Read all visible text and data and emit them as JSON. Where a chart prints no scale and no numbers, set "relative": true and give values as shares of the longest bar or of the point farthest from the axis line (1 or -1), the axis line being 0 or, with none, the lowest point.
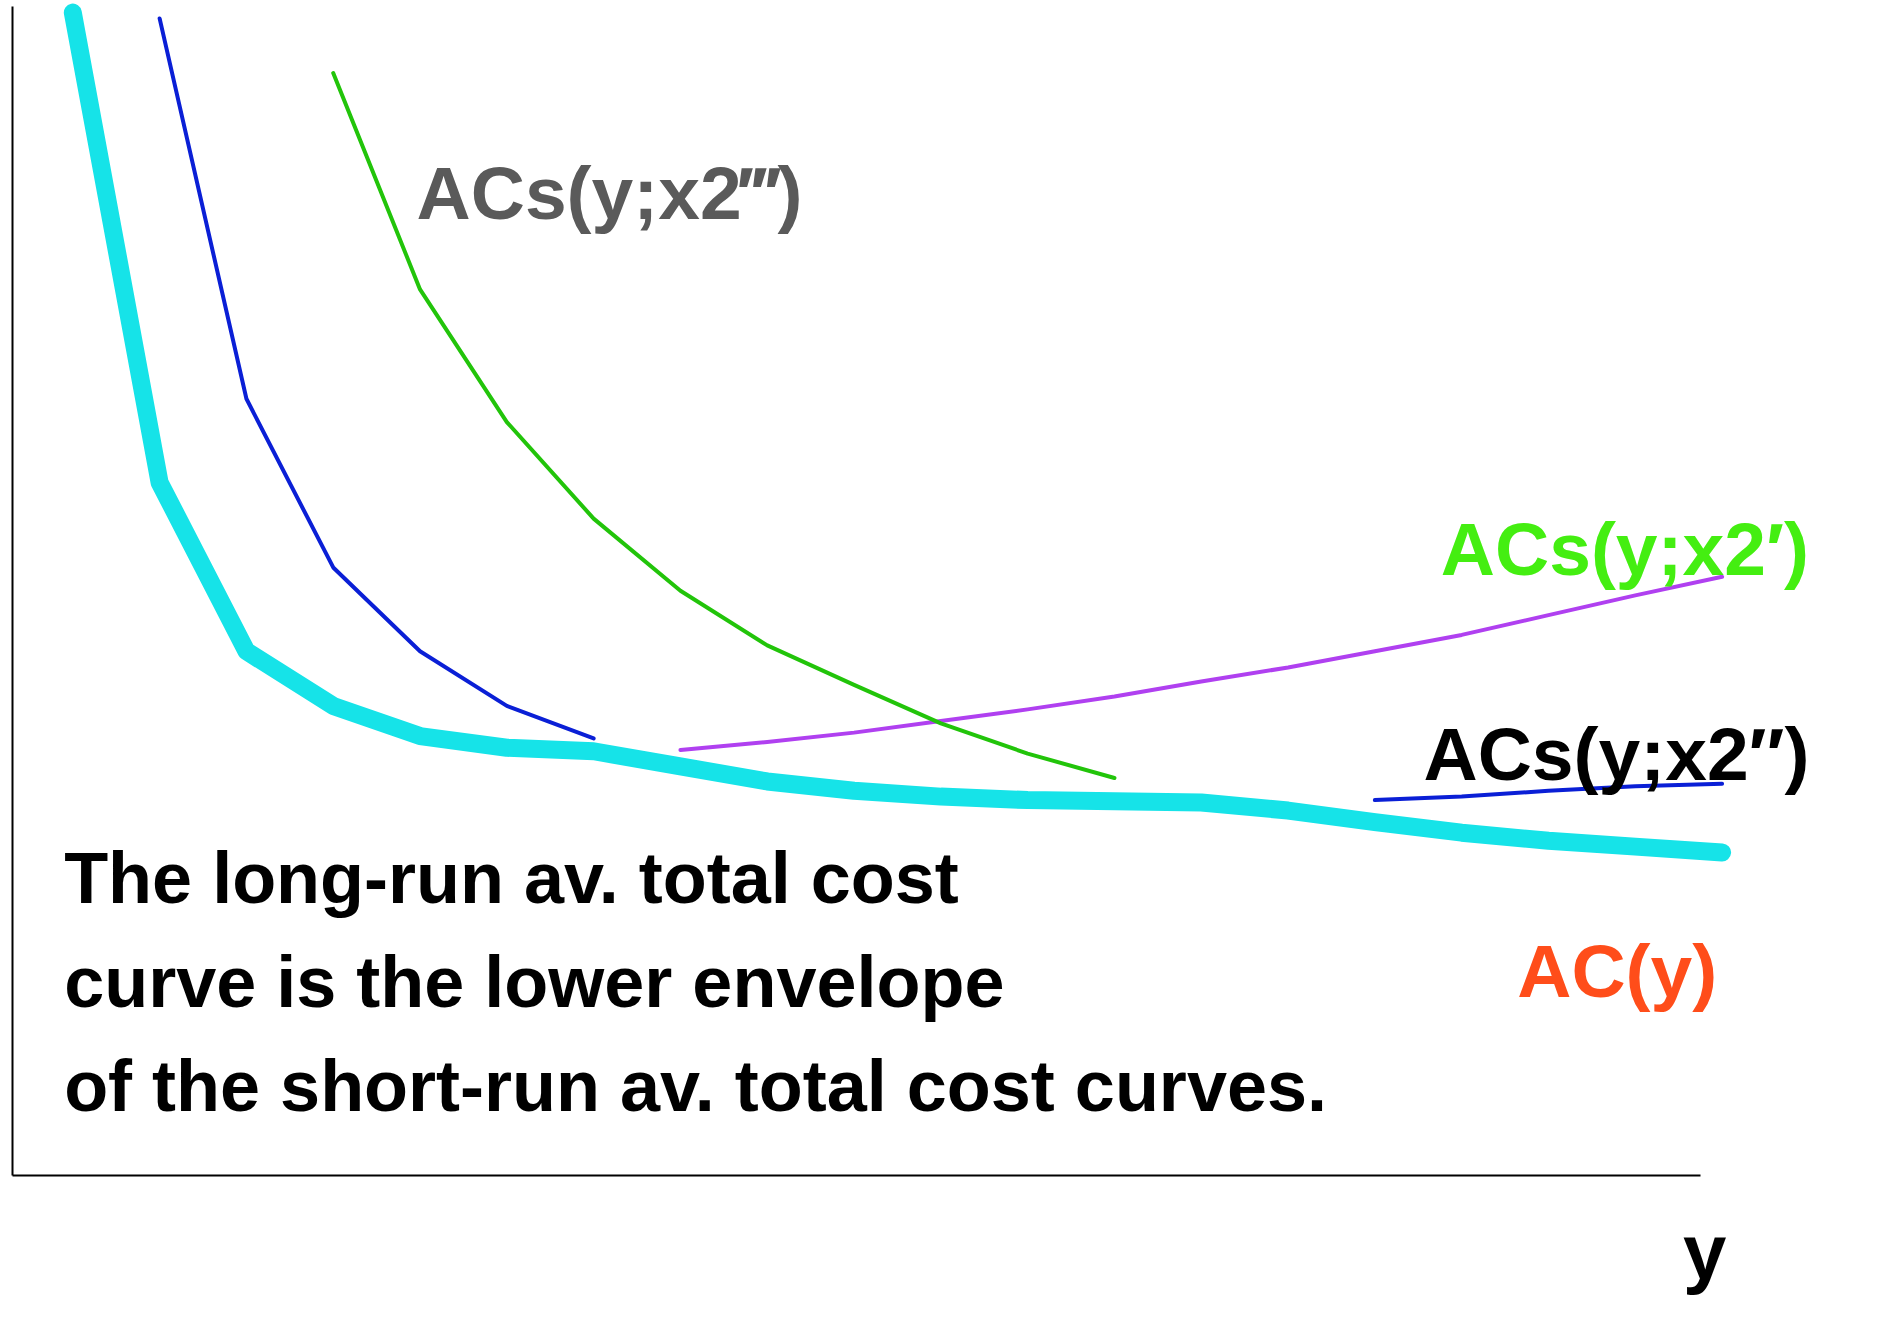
{
  "chart_data": {
    "type": "line",
    "relative": true,
    "xlabel": "y",
    "grid": false,
    "tick_labels": false,
    "categories": [
      null,
      null,
      null,
      null,
      null,
      null,
      null,
      null,
      null,
      null,
      null,
      null,
      null,
      null,
      null,
      null,
      null,
      null,
      null,
      null
    ],
    "series": [
      {
        "color": "#0a1fd6",
        "values": [
          null,
          0.995,
          0.668,
          0.523,
          0.451,
          0.404,
          0.376,
          null,
          null,
          null,
          null,
          null,
          null,
          null,
          null,
          0.323,
          0.326,
          0.331,
          0.335,
          0.337
        ]
      },
      {
        "color": "#b040f0",
        "values": [
          null,
          null,
          null,
          null,
          null,
          null,
          null,
          0.366,
          0.373,
          0.381,
          0.391,
          0.401,
          0.412,
          0.425,
          0.437,
          0.451,
          0.465,
          0.482,
          0.499,
          0.515
        ]
      },
      {
        "color": "#22c40a",
        "values": [
          null,
          null,
          null,
          0.948,
          0.762,
          0.648,
          0.565,
          0.503,
          0.456,
          0.422,
          0.389,
          0.363,
          0.342,
          null,
          null,
          null,
          null,
          null,
          null,
          null
        ]
      },
      {
        "color": "#16e3e8",
        "values": [
          1,
          0.596,
          0.451,
          0.404,
          0.378,
          0.368,
          0.365,
          0.352,
          0.339,
          0.331,
          0.326,
          0.323,
          0.322,
          0.321,
          0.314,
          0.304,
          0.295,
          0.288,
          0.283,
          0.278
        ]
      }
    ],
    "annotations": [
      "ACs(y;x2‴)",
      "ACs(y;x2′)",
      "ACs(y;x2″)",
      "AC(y)",
      "The long-run av. total cost\ncurve is the lower envelope\nof the short-run av. total cost curves."
    ]
  }
}
